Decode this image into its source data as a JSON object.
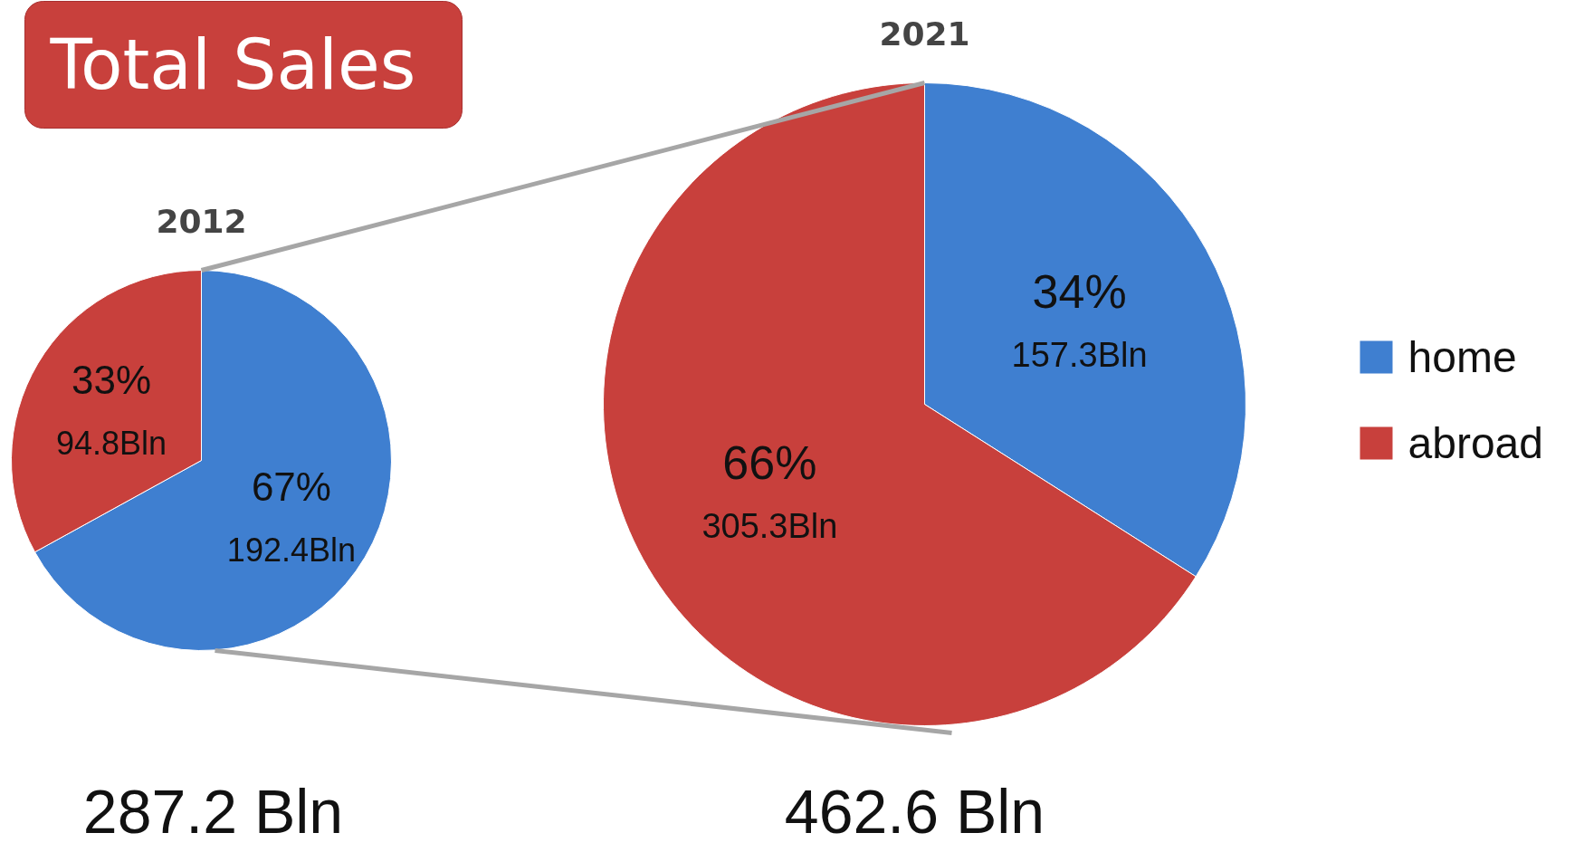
{
  "chart_data": [
    {
      "type": "pie",
      "title": "2012",
      "categories": [
        "home",
        "abroad"
      ],
      "values": [
        192.4,
        94.8
      ],
      "colors": [
        "#3f7fd0",
        "#c8403c"
      ],
      "value_labels": [
        "67%\n192.4Bln",
        "33%\n94.8Bln"
      ],
      "legend": "right",
      "annotations": [
        "Total Sales",
        "287.2 Bln"
      ]
    },
    {
      "type": "pie",
      "title": "2021",
      "values": [
        157.3,
        305.3
      ],
      "colors": [
        "#3f7fd0",
        "#c8403c"
      ],
      "value_labels": [
        "34%\n157.3Bln",
        "66%\n305.3Bln"
      ],
      "annotations": [
        "462.6 Bln"
      ]
    }
  ]
}
